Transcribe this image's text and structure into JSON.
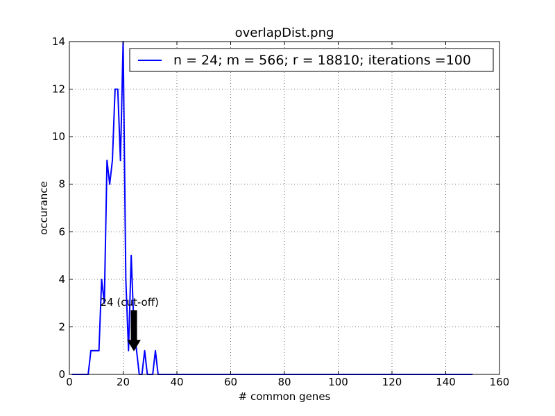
{
  "chart_data": {
    "type": "line",
    "title": "overlapDist.png",
    "xlabel": "# common genes",
    "ylabel": "occurance",
    "xlim": [
      0,
      160
    ],
    "ylim": [
      0,
      14
    ],
    "x_ticks": [
      0,
      20,
      40,
      60,
      80,
      100,
      120,
      140,
      160
    ],
    "y_ticks": [
      0,
      2,
      4,
      6,
      8,
      10,
      12,
      14
    ],
    "grid": true,
    "legend_position": "top-right",
    "series": [
      {
        "name": "n = 24; m = 566; r = 18810; iterations =100",
        "color": "#0000ff",
        "x": [
          1,
          2,
          3,
          4,
          5,
          6,
          7,
          8,
          9,
          10,
          11,
          12,
          13,
          14,
          15,
          16,
          17,
          18,
          19,
          20,
          21,
          22,
          23,
          24,
          25,
          26,
          27,
          28,
          29,
          30,
          31,
          32,
          33,
          34,
          35,
          40,
          50,
          60,
          70,
          80,
          90,
          100,
          110,
          120,
          130,
          140,
          150
        ],
        "values": [
          0,
          0,
          0,
          0,
          0,
          0,
          0,
          1,
          1,
          1,
          1,
          4,
          3,
          9,
          8,
          9,
          12,
          12,
          9,
          14,
          4,
          1,
          5,
          2,
          1,
          0,
          0,
          1,
          0,
          0,
          0,
          1,
          0,
          0,
          0,
          0,
          0,
          0,
          0,
          0,
          0,
          0,
          0,
          0,
          0,
          0,
          0
        ]
      }
    ],
    "annotation": {
      "text": "24 (cut-off)",
      "x": 24,
      "y": 1,
      "text_x": 12,
      "text_y": 2.6,
      "arrow_color": "#000000"
    }
  }
}
